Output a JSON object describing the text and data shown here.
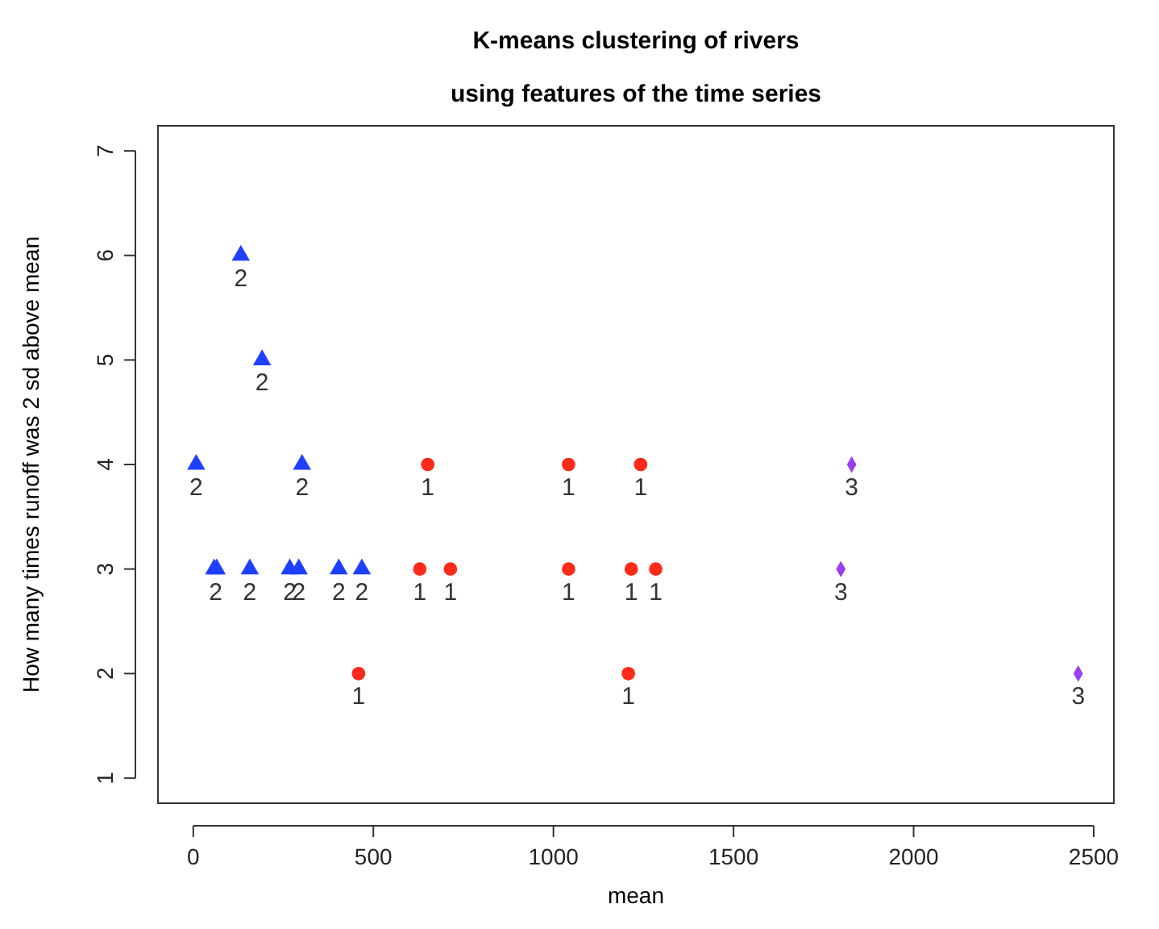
{
  "chart_data": {
    "type": "scatter",
    "title": "K-means clustering of rivers",
    "subtitle": "using features of the time series",
    "xlabel": "mean",
    "ylabel": "How many times runoff was 2 sd above mean",
    "xlim": [
      -98,
      2556
    ],
    "ylim": [
      0.76,
      7.24
    ],
    "xticks": [
      0,
      500,
      1000,
      1500,
      2000,
      2500
    ],
    "yticks": [
      1,
      2,
      3,
      4,
      5,
      6,
      7
    ],
    "grid": false,
    "series": [
      {
        "color": "#1f3fff",
        "marker": "triangle",
        "x": [
          8,
          132,
          191,
          302,
          58,
          65,
          157,
          268,
          293,
          404,
          468
        ],
        "values": [
          4,
          6,
          5,
          4,
          3,
          3,
          3,
          3,
          3,
          3,
          3
        ]
      },
      {
        "color": "#ff2a1a",
        "marker": "circle",
        "x": [
          651,
          1042,
          1242,
          629,
          714,
          1042,
          1216,
          1284,
          459,
          1208
        ],
        "values": [
          4,
          4,
          4,
          3,
          3,
          3,
          3,
          3,
          2,
          2
        ]
      },
      {
        "color": "#9b3df0",
        "marker": "diamond",
        "x": [
          1828,
          1798,
          2457
        ],
        "values": [
          4,
          3,
          2
        ]
      }
    ],
    "annotations": [
      {
        "text": "2",
        "x": 8,
        "y": 4
      },
      {
        "text": "2",
        "x": 132,
        "y": 6
      },
      {
        "text": "2",
        "x": 191,
        "y": 5
      },
      {
        "text": "2",
        "x": 302,
        "y": 4
      },
      {
        "text": "2",
        "x": 62,
        "y": 3
      },
      {
        "text": "2",
        "x": 157,
        "y": 3
      },
      {
        "text": "2",
        "x": 268,
        "y": 3
      },
      {
        "text": "2",
        "x": 293,
        "y": 3
      },
      {
        "text": "2",
        "x": 404,
        "y": 3
      },
      {
        "text": "2",
        "x": 468,
        "y": 3
      },
      {
        "text": "1",
        "x": 651,
        "y": 4
      },
      {
        "text": "1",
        "x": 1042,
        "y": 4
      },
      {
        "text": "1",
        "x": 1242,
        "y": 4
      },
      {
        "text": "1",
        "x": 629,
        "y": 3
      },
      {
        "text": "1",
        "x": 714,
        "y": 3
      },
      {
        "text": "1",
        "x": 1042,
        "y": 3
      },
      {
        "text": "1",
        "x": 1216,
        "y": 3
      },
      {
        "text": "1",
        "x": 1284,
        "y": 3
      },
      {
        "text": "1",
        "x": 459,
        "y": 2
      },
      {
        "text": "1",
        "x": 1208,
        "y": 2
      },
      {
        "text": "3",
        "x": 1828,
        "y": 4
      },
      {
        "text": "3",
        "x": 1798,
        "y": 3
      },
      {
        "text": "3",
        "x": 2457,
        "y": 2
      }
    ]
  }
}
